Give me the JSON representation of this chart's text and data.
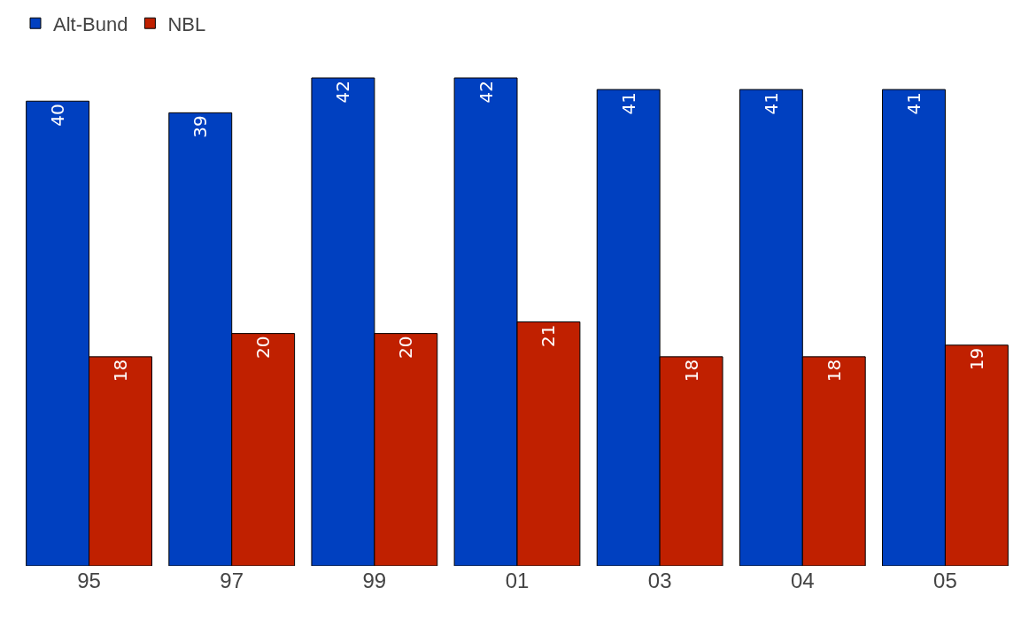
{
  "chart_data": {
    "type": "bar",
    "categories": [
      "95",
      "97",
      "99",
      "01",
      "03",
      "04",
      "05"
    ],
    "series": [
      {
        "name": "Alt-Bund",
        "color": "#0040c0",
        "values": [
          40,
          39,
          42,
          42,
          41,
          41,
          41
        ]
      },
      {
        "name": "NBL",
        "color": "#c02000",
        "values": [
          18,
          20,
          20,
          21,
          18,
          18,
          19
        ]
      }
    ],
    "data_labels": true,
    "legend": "top left",
    "grid": false
  }
}
